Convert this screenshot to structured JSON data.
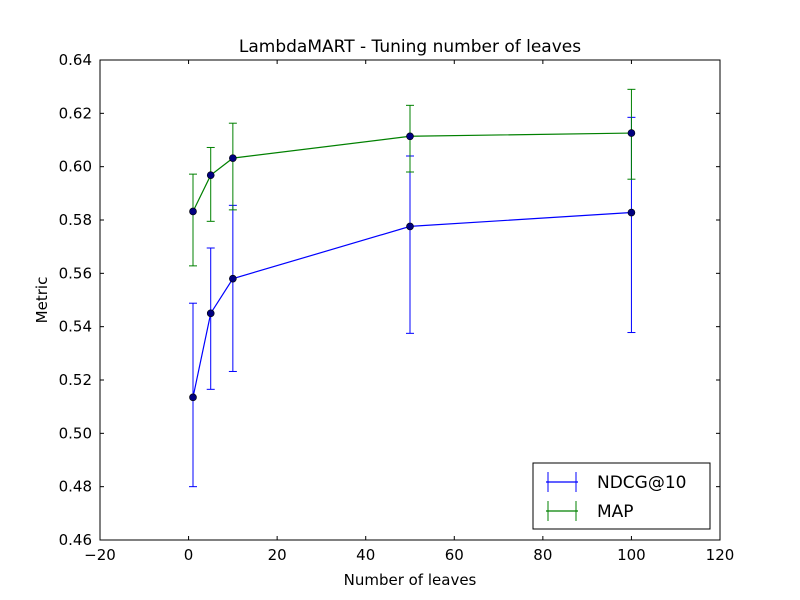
{
  "chart_data": {
    "type": "line",
    "title": "LambdaMART - Tuning number of leaves",
    "xlabel": "Number of leaves",
    "ylabel": "Metric",
    "xlim": [
      -20,
      120
    ],
    "ylim": [
      0.46,
      0.64
    ],
    "xticks": [
      -20,
      0,
      20,
      40,
      60,
      80,
      100,
      120
    ],
    "xtick_labels": [
      "−20",
      "0",
      "20",
      "40",
      "60",
      "80",
      "100",
      "120"
    ],
    "yticks": [
      0.46,
      0.48,
      0.5,
      0.52,
      0.54,
      0.56,
      0.58,
      0.6,
      0.62,
      0.64
    ],
    "ytick_labels": [
      "0.46",
      "0.48",
      "0.50",
      "0.52",
      "0.54",
      "0.56",
      "0.58",
      "0.60",
      "0.62",
      "0.64"
    ],
    "grid": false,
    "legend_position": "bottom-right",
    "x": [
      1,
      5,
      10,
      50,
      100
    ],
    "series": [
      {
        "name": "NDCG@10",
        "color": "#0000ff",
        "values": [
          0.5135,
          0.545,
          0.558,
          0.5776,
          0.5828
        ],
        "err_low": [
          0.48,
          0.5165,
          0.5232,
          0.5375,
          0.5378
        ],
        "err_high": [
          0.5488,
          0.5695,
          0.5855,
          0.604,
          0.6185
        ]
      },
      {
        "name": "MAP",
        "color": "#008000",
        "values": [
          0.5832,
          0.5968,
          0.6032,
          0.6114,
          0.6126
        ],
        "err_low": [
          0.5628,
          0.5795,
          0.5838,
          0.598,
          0.5953
        ],
        "err_high": [
          0.5972,
          0.6072,
          0.6163,
          0.623,
          0.629
        ]
      }
    ]
  }
}
